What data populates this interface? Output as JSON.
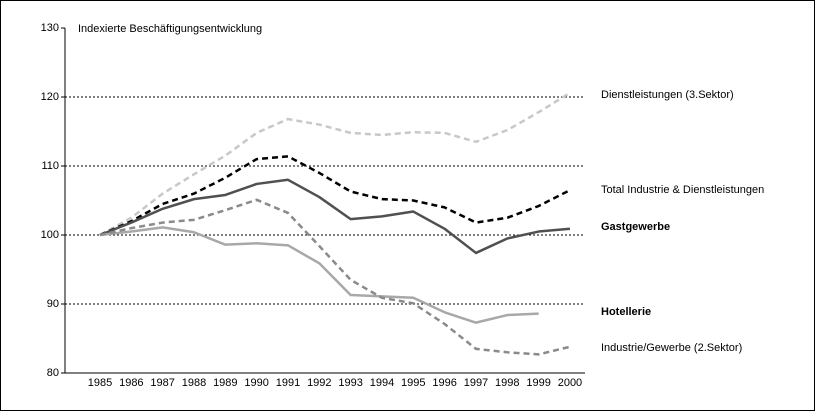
{
  "chart_data": {
    "type": "line",
    "title": "Indexierte Beschäftigungsentwicklung",
    "categories": [
      "1985",
      "1986",
      "1987",
      "1988",
      "1989",
      "1990",
      "1991",
      "1992",
      "1993",
      "1994",
      "1995",
      "1996",
      "1997",
      "1998",
      "1999",
      "2000"
    ],
    "series": [
      {
        "name": "Dienstleistungen (3.Sektor)",
        "color": "#c8c8c8",
        "dashed": true,
        "bold": false,
        "values": [
          100,
          102.5,
          106,
          108.8,
          111.5,
          114.8,
          116.8,
          116,
          114.8,
          114.5,
          114.9,
          114.8,
          113.5,
          115.2,
          117.8,
          120.6
        ]
      },
      {
        "name": "Total Industrie & Dienstleistungen",
        "color": "#000000",
        "dashed": true,
        "bold": false,
        "values": [
          100,
          102,
          104.5,
          106,
          108.3,
          111,
          111.4,
          109,
          106.3,
          105.2,
          105,
          104,
          101.8,
          102.5,
          104.2,
          106.5
        ]
      },
      {
        "name": "Gastgewerbe",
        "color": "#505050",
        "dashed": false,
        "bold": true,
        "values": [
          100,
          101.8,
          103.8,
          105.2,
          105.8,
          107.4,
          108,
          105.5,
          102.3,
          102.7,
          103.4,
          100.9,
          97.4,
          99.5,
          100.5,
          100.9
        ]
      },
      {
        "name": "Hotellerie",
        "color": "#a8a8a8",
        "dashed": false,
        "bold": true,
        "values": [
          100,
          100.5,
          101.1,
          100.4,
          98.6,
          98.8,
          98.5,
          95.9,
          91.3,
          91.1,
          90.9,
          88.8,
          87.3,
          88.4,
          88.6,
          null
        ]
      },
      {
        "name": "Industrie/Gewerbe (2.Sektor)",
        "color": "#8a8a8a",
        "dashed": true,
        "bold": false,
        "values": [
          100,
          101,
          101.8,
          102.2,
          103.6,
          105.1,
          103.2,
          98.4,
          93.5,
          90.9,
          90.1,
          87.1,
          83.5,
          83,
          82.7,
          83.8
        ]
      }
    ],
    "ylim": [
      80,
      130
    ],
    "yticks": [
      80,
      90,
      100,
      110,
      120,
      130
    ],
    "grid": true
  }
}
